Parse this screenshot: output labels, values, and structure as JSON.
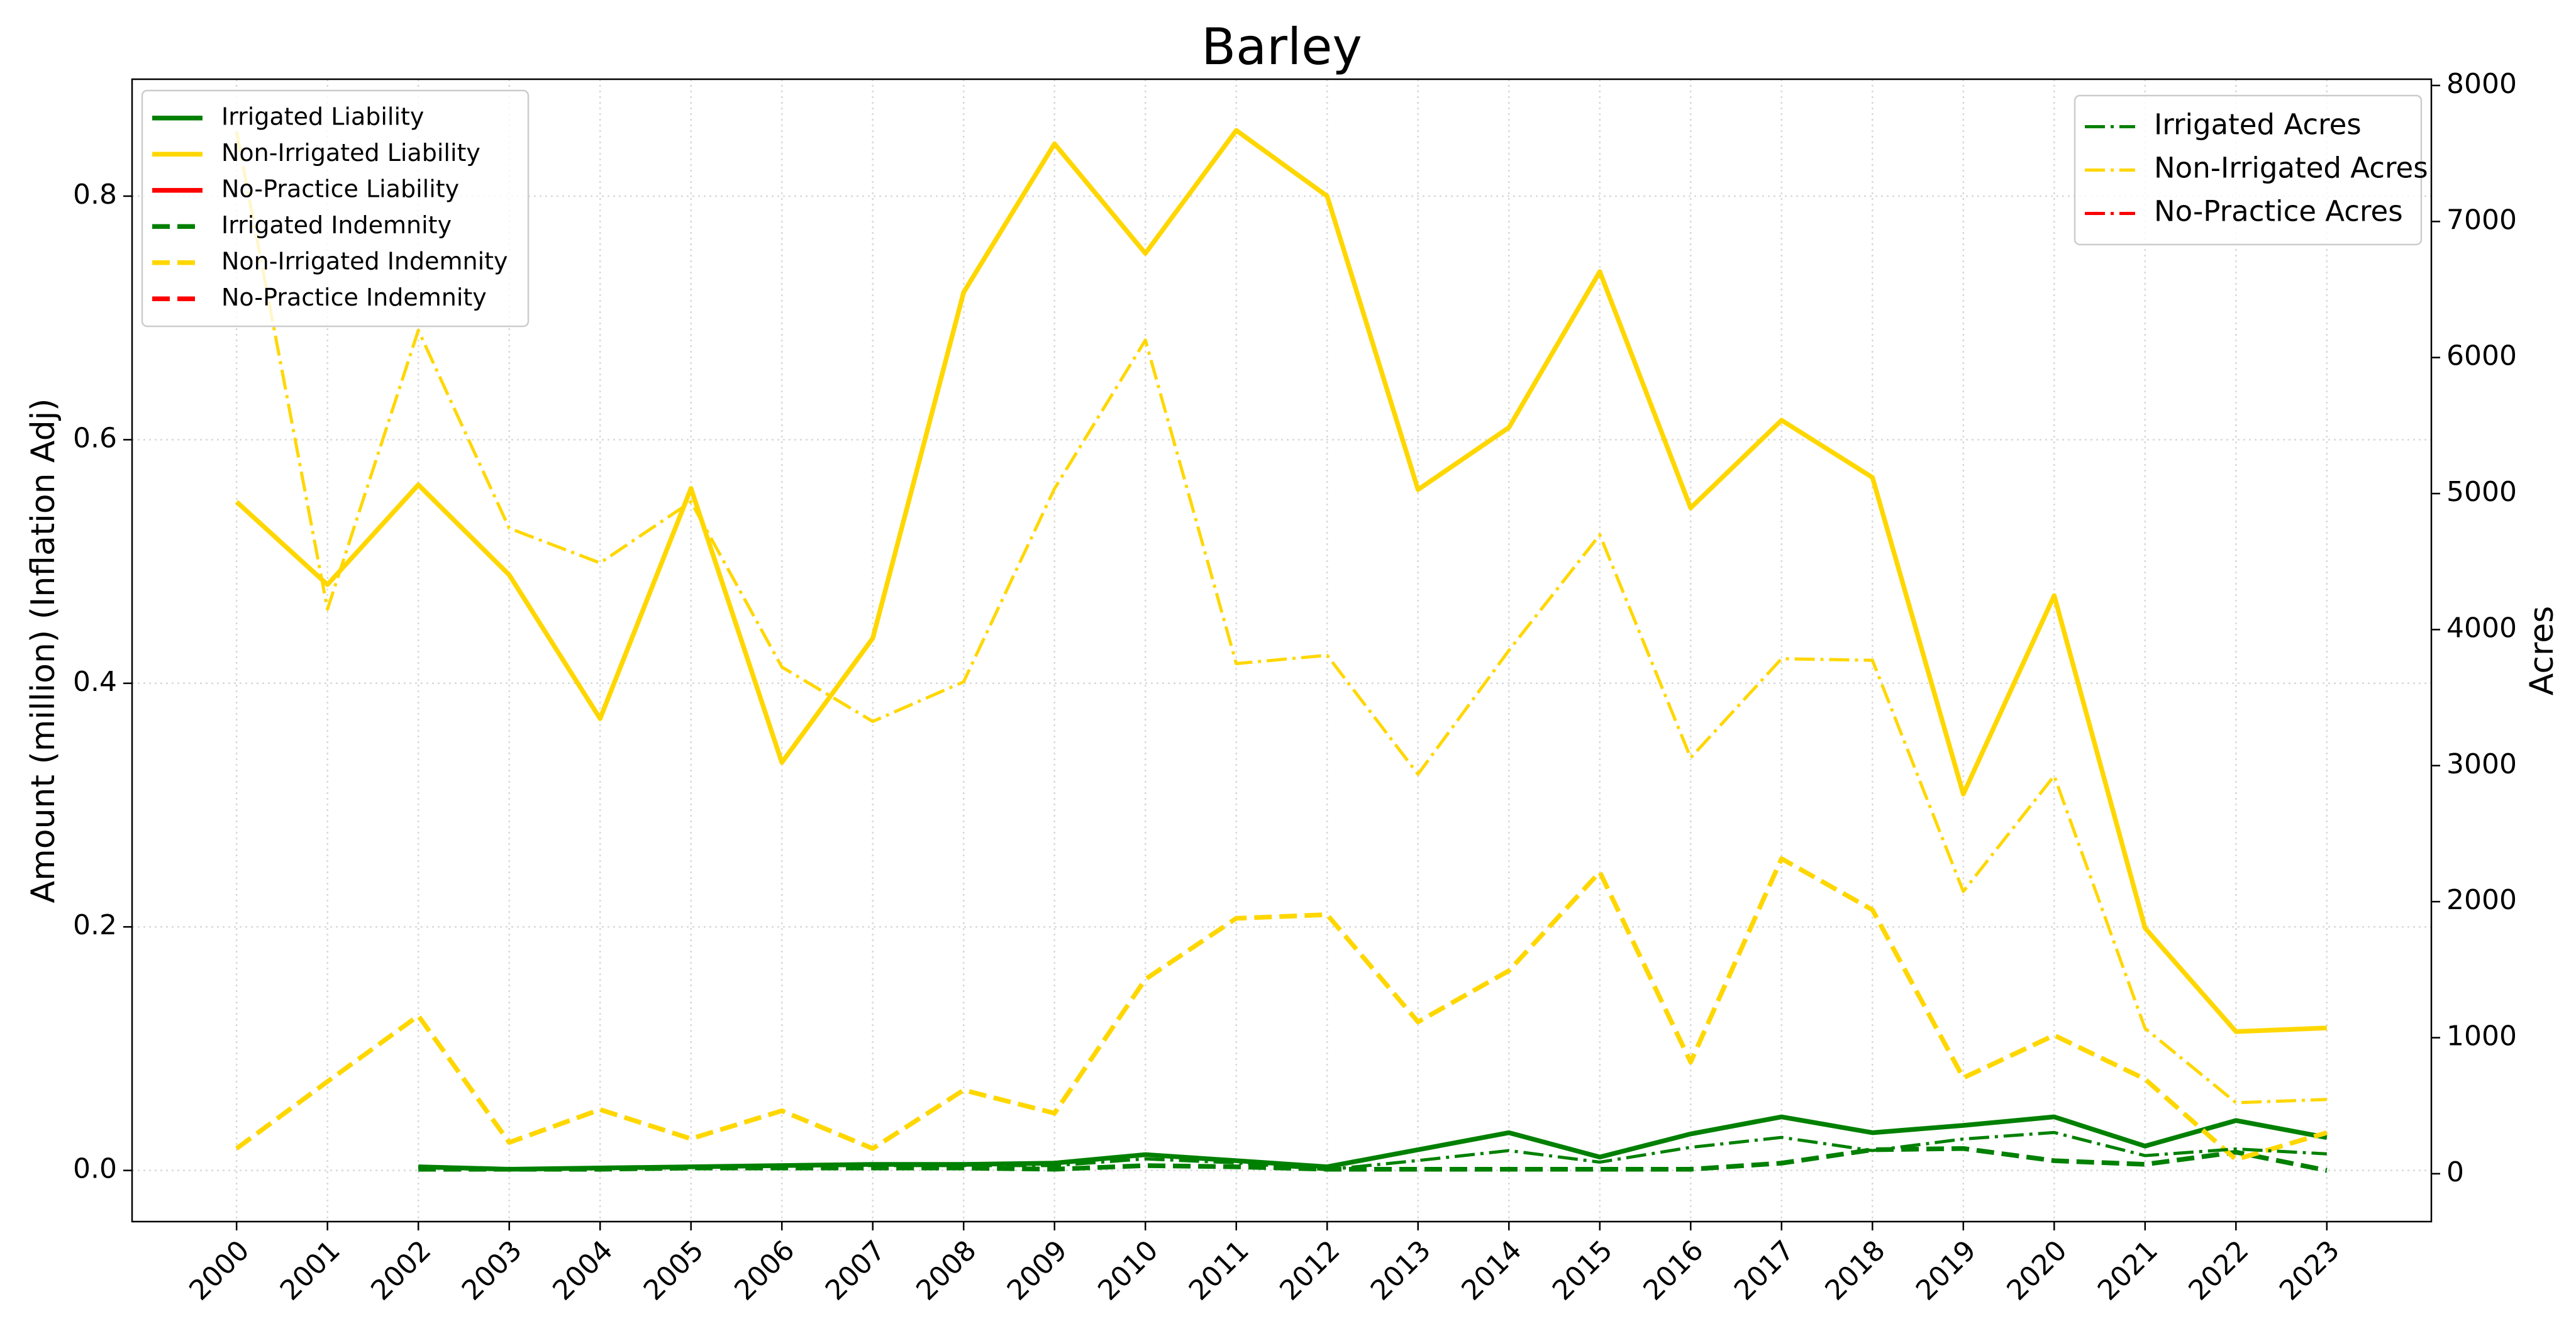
{
  "chart_data": {
    "type": "line",
    "title": "Barley",
    "ylabel": "Amount (million) (Inflation Adj)",
    "y2label": "Acres",
    "x": [
      2000,
      2001,
      2002,
      2003,
      2004,
      2005,
      2006,
      2007,
      2008,
      2009,
      2010,
      2011,
      2012,
      2013,
      2014,
      2015,
      2016,
      2017,
      2018,
      2019,
      2020,
      2021,
      2022,
      2023
    ],
    "xlim": [
      1998.85,
      2024.15
    ],
    "xticks": [
      2000,
      2001,
      2002,
      2003,
      2004,
      2005,
      2006,
      2007,
      2008,
      2009,
      2010,
      2011,
      2012,
      2013,
      2014,
      2015,
      2016,
      2017,
      2018,
      2019,
      2020,
      2021,
      2022,
      2023
    ],
    "ylim": [
      -0.042,
      0.896
    ],
    "yticks": [
      {
        "value": 0,
        "label": "0.0"
      },
      0.2,
      0.4,
      0.6,
      0.8
    ],
    "y2lim": [
      -352,
      8046
    ],
    "y2ticks": [
      0,
      1000,
      2000,
      3000,
      4000,
      5000,
      6000,
      7000,
      8000
    ],
    "grid": true,
    "legend": {
      "y": "upper left",
      "y2": "upper right"
    },
    "series": [
      {
        "name": "Irrigated Liability",
        "color": "#008000",
        "linestyle": "solid",
        "axis": "y",
        "values": [
          null,
          null,
          0.003,
          0.001,
          0.002,
          0.003,
          0.004,
          0.005,
          0.005,
          0.006,
          0.013,
          0.008,
          0.003,
          0.017,
          0.031,
          0.011,
          0.03,
          0.044,
          0.031,
          0.037,
          0.044,
          0.02,
          0.041,
          0.027
        ]
      },
      {
        "name": "Non-Irrigated Liability",
        "color": "#ffd700",
        "linestyle": "solid",
        "axis": "y",
        "values": [
          0.549,
          0.481,
          0.563,
          0.489,
          0.371,
          0.56,
          0.335,
          0.437,
          0.721,
          0.843,
          0.753,
          0.854,
          0.8,
          0.559,
          0.61,
          0.738,
          0.544,
          0.616,
          0.569,
          0.309,
          0.472,
          0.199,
          0.114,
          0.117
        ]
      },
      {
        "name": "No-Practice Liability",
        "color": "#ff0000",
        "linestyle": "solid",
        "axis": "y",
        "values": [
          null,
          null,
          null,
          null,
          null,
          null,
          null,
          null,
          null,
          null,
          null,
          null,
          null,
          null,
          null,
          null,
          null,
          null,
          null,
          null,
          null,
          null,
          null,
          null
        ]
      },
      {
        "name": "Irrigated Indemnity",
        "color": "#008000",
        "linestyle": "dashed",
        "axis": "y",
        "values": [
          null,
          null,
          0.001,
          0.001,
          0.001,
          0.002,
          0.002,
          0.002,
          0.002,
          0.001,
          0.004,
          0.003,
          0.001,
          0.001,
          0.001,
          0.001,
          0.001,
          0.006,
          0.017,
          0.018,
          0.008,
          0.005,
          0.015,
          0.0
        ]
      },
      {
        "name": "Non-Irrigated Indemnity",
        "color": "#ffd700",
        "linestyle": "dashed",
        "axis": "y",
        "values": [
          0.018,
          0.073,
          0.127,
          0.023,
          0.05,
          0.026,
          0.049,
          0.018,
          0.066,
          0.047,
          0.157,
          0.207,
          0.21,
          0.122,
          0.164,
          0.245,
          0.089,
          0.256,
          0.214,
          0.076,
          0.111,
          0.075,
          0.009,
          0.031
        ]
      },
      {
        "name": "No-Practice Indemnity",
        "color": "#ff0000",
        "linestyle": "dashed",
        "axis": "y",
        "values": [
          null,
          null,
          null,
          null,
          null,
          null,
          null,
          null,
          null,
          null,
          null,
          null,
          null,
          null,
          null,
          null,
          null,
          null,
          null,
          null,
          null,
          null,
          null,
          null
        ]
      },
      {
        "name": "Irrigated Acres",
        "color": "#008000",
        "linestyle": "dashdot",
        "axis": "y2",
        "values": [
          null,
          null,
          50,
          36,
          40,
          50,
          60,
          60,
          60,
          60,
          109,
          80,
          30,
          97,
          170,
          85,
          194,
          267,
          170,
          255,
          303,
          133,
          182,
          146
        ]
      },
      {
        "name": "Non-Irrigated Acres",
        "color": "#ffd700",
        "linestyle": "dashdot",
        "axis": "y2",
        "values": [
          7658,
          4150,
          6200,
          4745,
          4490,
          4940,
          3725,
          3325,
          3616,
          5036,
          6128,
          3750,
          3811,
          2937,
          3847,
          4697,
          3058,
          3786,
          3774,
          2075,
          2925,
          1068,
          522,
          546
        ]
      },
      {
        "name": "No-Practice Acres",
        "color": "#ff0000",
        "linestyle": "dashdot",
        "axis": "y2",
        "values": [
          null,
          null,
          null,
          null,
          null,
          null,
          null,
          null,
          null,
          null,
          null,
          null,
          null,
          null,
          null,
          null,
          null,
          null,
          null,
          null,
          null,
          null,
          null,
          null
        ]
      }
    ]
  }
}
